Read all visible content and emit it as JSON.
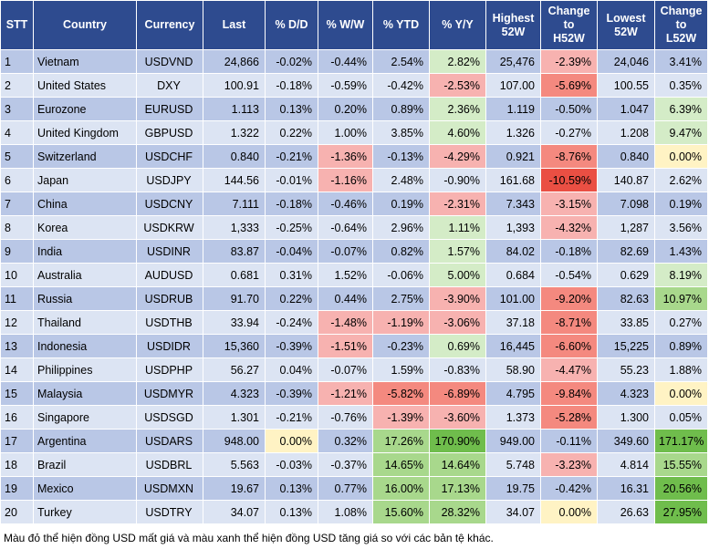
{
  "headers": {
    "stt": "STT",
    "country": "Country",
    "currency": "Currency",
    "last": "Last",
    "dd": "% D/D",
    "ww": "% W/W",
    "ytd": "% YTD",
    "yy": "% Y/Y",
    "high1": "Highest",
    "high2": "52W",
    "chh1": "Change",
    "chh2": "to",
    "chh3": "H52W",
    "low1": "Lowest",
    "low2": "52W",
    "chl1": "Change",
    "chl2": "to",
    "chl3": "L52W"
  },
  "rows": [
    {
      "stt": "1",
      "country": "Vietnam",
      "currency": "USDVND",
      "last": "24,866",
      "dd": "-0.02%",
      "ww": "-0.44%",
      "ytd": "2.54%",
      "yy": "2.82%",
      "high": "25,476",
      "chh": "-2.39%",
      "low": "24,046",
      "chl": "3.41%"
    },
    {
      "stt": "2",
      "country": "United States",
      "currency": "DXY",
      "last": "100.91",
      "dd": "-0.18%",
      "ww": "-0.59%",
      "ytd": "-0.42%",
      "yy": "-2.53%",
      "high": "107.00",
      "chh": "-5.69%",
      "low": "100.55",
      "chl": "0.35%"
    },
    {
      "stt": "3",
      "country": "Eurozone",
      "currency": "EURUSD",
      "last": "1.113",
      "dd": "0.13%",
      "ww": "0.20%",
      "ytd": "0.89%",
      "yy": "2.36%",
      "high": "1.119",
      "chh": "-0.50%",
      "low": "1.047",
      "chl": "6.39%"
    },
    {
      "stt": "4",
      "country": "United Kingdom",
      "currency": "GBPUSD",
      "last": "1.322",
      "dd": "0.22%",
      "ww": "1.00%",
      "ytd": "3.85%",
      "yy": "4.60%",
      "high": "1.326",
      "chh": "-0.27%",
      "low": "1.208",
      "chl": "9.47%"
    },
    {
      "stt": "5",
      "country": "Switzerland",
      "currency": "USDCHF",
      "last": "0.840",
      "dd": "-0.21%",
      "ww": "-1.36%",
      "ytd": "-0.13%",
      "yy": "-4.29%",
      "high": "0.921",
      "chh": "-8.76%",
      "low": "0.840",
      "chl": "0.00%"
    },
    {
      "stt": "6",
      "country": "Japan",
      "currency": "USDJPY",
      "last": "144.56",
      "dd": "-0.01%",
      "ww": "-1.16%",
      "ytd": "2.48%",
      "yy": "-0.90%",
      "high": "161.68",
      "chh": "-10.59%",
      "low": "140.87",
      "chl": "2.62%"
    },
    {
      "stt": "7",
      "country": "China",
      "currency": "USDCNY",
      "last": "7.111",
      "dd": "-0.18%",
      "ww": "-0.46%",
      "ytd": "0.19%",
      "yy": "-2.31%",
      "high": "7.343",
      "chh": "-3.15%",
      "low": "7.098",
      "chl": "0.19%"
    },
    {
      "stt": "8",
      "country": "Korea",
      "currency": "USDKRW",
      "last": "1,333",
      "dd": "-0.25%",
      "ww": "-0.64%",
      "ytd": "2.96%",
      "yy": "1.11%",
      "high": "1,393",
      "chh": "-4.32%",
      "low": "1,287",
      "chl": "3.56%"
    },
    {
      "stt": "9",
      "country": "India",
      "currency": "USDINR",
      "last": "83.87",
      "dd": "-0.04%",
      "ww": "-0.07%",
      "ytd": "0.82%",
      "yy": "1.57%",
      "high": "84.02",
      "chh": "-0.18%",
      "low": "82.69",
      "chl": "1.43%"
    },
    {
      "stt": "10",
      "country": "Australia",
      "currency": "AUDUSD",
      "last": "0.681",
      "dd": "0.31%",
      "ww": "1.52%",
      "ytd": "-0.06%",
      "yy": "5.00%",
      "high": "0.684",
      "chh": "-0.54%",
      "low": "0.629",
      "chl": "8.19%"
    },
    {
      "stt": "11",
      "country": "Russia",
      "currency": "USDRUB",
      "last": "91.70",
      "dd": "0.22%",
      "ww": "0.44%",
      "ytd": "2.75%",
      "yy": "-3.90%",
      "high": "101.00",
      "chh": "-9.20%",
      "low": "82.63",
      "chl": "10.97%"
    },
    {
      "stt": "12",
      "country": "Thailand",
      "currency": "USDTHB",
      "last": "33.94",
      "dd": "-0.24%",
      "ww": "-1.48%",
      "ytd": "-1.19%",
      "yy": "-3.06%",
      "high": "37.18",
      "chh": "-8.71%",
      "low": "33.85",
      "chl": "0.27%"
    },
    {
      "stt": "13",
      "country": "Indonesia",
      "currency": "USDIDR",
      "last": "15,360",
      "dd": "-0.39%",
      "ww": "-1.51%",
      "ytd": "-0.23%",
      "yy": "0.69%",
      "high": "16,445",
      "chh": "-6.60%",
      "low": "15,225",
      "chl": "0.89%"
    },
    {
      "stt": "14",
      "country": "Philippines",
      "currency": "USDPHP",
      "last": "56.27",
      "dd": "0.04%",
      "ww": "-0.07%",
      "ytd": "1.59%",
      "yy": "-0.83%",
      "high": "58.90",
      "chh": "-4.47%",
      "low": "55.23",
      "chl": "1.88%"
    },
    {
      "stt": "15",
      "country": "Malaysia",
      "currency": "USDMYR",
      "last": "4.323",
      "dd": "-0.39%",
      "ww": "-1.21%",
      "ytd": "-5.82%",
      "yy": "-6.89%",
      "high": "4.795",
      "chh": "-9.84%",
      "low": "4.323",
      "chl": "0.00%"
    },
    {
      "stt": "16",
      "country": "Singapore",
      "currency": "USDSGD",
      "last": "1.301",
      "dd": "-0.21%",
      "ww": "-0.76%",
      "ytd": "-1.39%",
      "yy": "-3.60%",
      "high": "1.373",
      "chh": "-5.28%",
      "low": "1.300",
      "chl": "0.05%"
    },
    {
      "stt": "17",
      "country": "Argentina",
      "currency": "USDARS",
      "last": "948.00",
      "dd": "0.00%",
      "ww": "0.32%",
      "ytd": "17.26%",
      "yy": "170.90%",
      "high": "949.00",
      "chh": "-0.11%",
      "low": "349.60",
      "chl": "171.17%"
    },
    {
      "stt": "18",
      "country": "Brazil",
      "currency": "USDBRL",
      "last": "5.563",
      "dd": "-0.03%",
      "ww": "-0.37%",
      "ytd": "14.65%",
      "yy": "14.64%",
      "high": "5.748",
      "chh": "-3.23%",
      "low": "4.814",
      "chl": "15.55%"
    },
    {
      "stt": "19",
      "country": "Mexico",
      "currency": "USDMXN",
      "last": "19.67",
      "dd": "0.13%",
      "ww": "0.77%",
      "ytd": "16.00%",
      "yy": "17.13%",
      "high": "19.75",
      "chh": "-0.42%",
      "low": "16.31",
      "chl": "20.56%"
    },
    {
      "stt": "20",
      "country": "Turkey",
      "currency": "USDTRY",
      "last": "34.07",
      "dd": "0.13%",
      "ww": "1.08%",
      "ytd": "15.60%",
      "yy": "28.32%",
      "high": "34.07",
      "chh": "0.00%",
      "low": "26.63",
      "chl": "27.95%"
    }
  ],
  "footnote": "Màu đỏ thể hiện đồng USD mất giá và màu xanh thể hiện đồng USD tăng giá so với các bản tệ khác."
}
